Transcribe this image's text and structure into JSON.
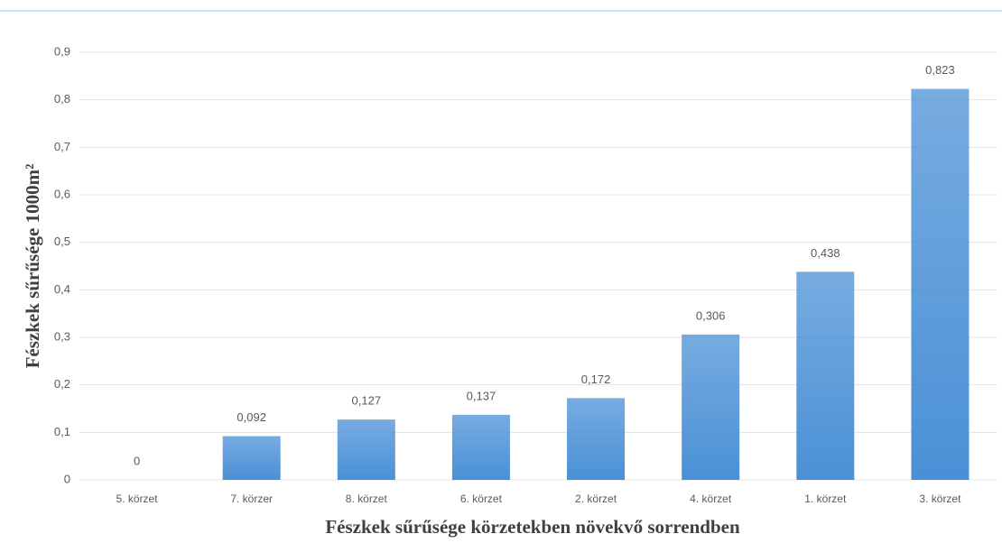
{
  "chart_data": {
    "type": "bar",
    "xlabel": "Fészkek sűrűsége körzetekben növekvő sorrendben",
    "ylabel": "Fészkek sűrűsége 1000m²",
    "categories": [
      "5. körzet",
      "7. körzer",
      "8. körzet",
      "6. körzet",
      "2. körzet",
      "4. körzet",
      "1. körzet",
      "3. körzet"
    ],
    "values": [
      0,
      0.092,
      0.127,
      0.137,
      0.172,
      0.306,
      0.438,
      0.823
    ],
    "value_labels": [
      "0",
      "0,092",
      "0,127",
      "0,137",
      "0,172",
      "0,306",
      "0,438",
      "0,823"
    ],
    "color": "#4a90d6",
    "ylim": [
      0,
      0.9
    ],
    "yticks": [
      0,
      {
        "value": 0.1,
        "label": "0,1"
      },
      {
        "value": 0.2,
        "label": "0,2"
      },
      {
        "value": 0.3,
        "label": "0,3"
      },
      {
        "value": 0.4,
        "label": "0,4"
      },
      {
        "value": 0.5,
        "label": "0,5"
      },
      {
        "value": 0.6,
        "label": "0,6"
      },
      {
        "value": 0.7,
        "label": "0,7"
      },
      {
        "value": 0.8,
        "label": "0,8"
      },
      {
        "value": 0.9,
        "label": "0,9"
      }
    ],
    "grid": true
  }
}
